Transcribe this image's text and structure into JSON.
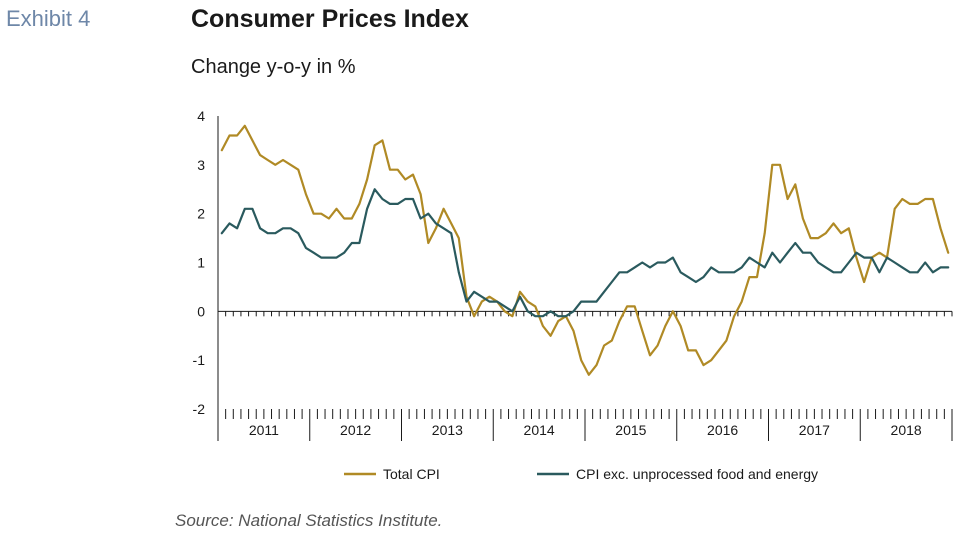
{
  "header": {
    "exhibit": "Exhibit 4",
    "title": "Consumer Prices Index",
    "subtitle": "Change y-o-y in %"
  },
  "footer": {
    "source": "Source: National Statistics Institute."
  },
  "colors": {
    "total_cpi": "#b08a25",
    "core_cpi": "#2a5a5e",
    "axis": "#1a1a1a"
  },
  "chart_data": {
    "type": "line",
    "title": "Consumer Prices Index",
    "subtitle": "Change y-o-y in %",
    "ylim": [
      -2,
      4
    ],
    "yticks": [
      "4",
      "3",
      "2",
      "1",
      "0",
      "-1",
      "-2"
    ],
    "year_labels": [
      "2011",
      "2012",
      "2013",
      "2014",
      "2015",
      "2016",
      "2017",
      "2018"
    ],
    "months_per_year": 12,
    "grid": false,
    "legend_position": "bottom",
    "series": [
      {
        "name": "Total CPI",
        "values": [
          3.3,
          3.6,
          3.6,
          3.8,
          3.5,
          3.2,
          3.1,
          3.0,
          3.1,
          3.0,
          2.9,
          2.4,
          2.0,
          2.0,
          1.9,
          2.1,
          1.9,
          1.9,
          2.2,
          2.7,
          3.4,
          3.5,
          2.9,
          2.9,
          2.7,
          2.8,
          2.4,
          1.4,
          1.7,
          2.1,
          1.8,
          1.5,
          0.3,
          -0.1,
          0.2,
          0.3,
          0.2,
          0.0,
          -0.1,
          0.4,
          0.2,
          0.1,
          -0.3,
          -0.5,
          -0.2,
          -0.1,
          -0.4,
          -1.0,
          -1.3,
          -1.1,
          -0.7,
          -0.6,
          -0.2,
          0.1,
          0.1,
          -0.4,
          -0.9,
          -0.7,
          -0.3,
          0.0,
          -0.3,
          -0.8,
          -0.8,
          -1.1,
          -1.0,
          -0.8,
          -0.6,
          -0.1,
          0.2,
          0.7,
          0.7,
          1.6,
          3.0,
          3.0,
          2.3,
          2.6,
          1.9,
          1.5,
          1.5,
          1.6,
          1.8,
          1.6,
          1.7,
          1.1,
          0.6,
          1.1,
          1.2,
          1.1,
          2.1,
          2.3,
          2.2,
          2.2,
          2.3,
          2.3,
          1.7,
          1.2
        ]
      },
      {
        "name": "CPI exc. unprocessed food and energy",
        "values": [
          1.6,
          1.8,
          1.7,
          2.1,
          2.1,
          1.7,
          1.6,
          1.6,
          1.7,
          1.7,
          1.6,
          1.3,
          1.2,
          1.1,
          1.1,
          1.1,
          1.2,
          1.4,
          1.4,
          2.1,
          2.5,
          2.3,
          2.2,
          2.2,
          2.3,
          2.3,
          1.9,
          2.0,
          1.8,
          1.7,
          1.6,
          0.8,
          0.2,
          0.4,
          0.3,
          0.2,
          0.2,
          0.1,
          0.0,
          0.3,
          0.0,
          -0.1,
          -0.1,
          0.0,
          -0.1,
          -0.1,
          0.0,
          0.2,
          0.2,
          0.2,
          0.4,
          0.6,
          0.8,
          0.8,
          0.9,
          1.0,
          0.9,
          1.0,
          1.0,
          1.1,
          0.8,
          0.7,
          0.6,
          0.7,
          0.9,
          0.8,
          0.8,
          0.8,
          0.9,
          1.1,
          1.0,
          0.9,
          1.2,
          1.0,
          1.2,
          1.4,
          1.2,
          1.2,
          1.0,
          0.9,
          0.8,
          0.8,
          1.0,
          1.2,
          1.1,
          1.1,
          0.8,
          1.1,
          1.0,
          0.9,
          0.8,
          0.8,
          1.0,
          0.8,
          0.9,
          0.9
        ]
      }
    ]
  }
}
